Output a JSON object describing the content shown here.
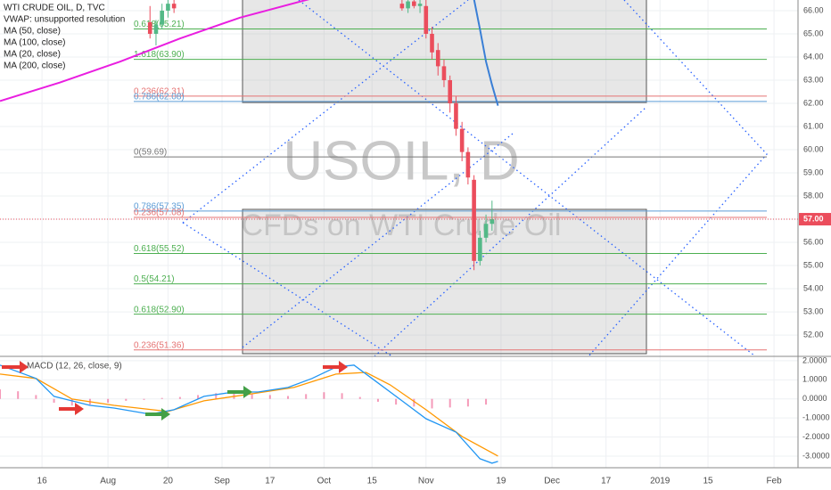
{
  "chart_data": [
    {
      "type": "candlestick",
      "title": "WTI CRUDE OIL, D, TVC",
      "watermark": "USOIL, D",
      "subtitle": "CFDs on WTI Crude Oil",
      "xlim": [
        0,
        133
      ],
      "xticks": [
        {
          "value": 7,
          "label": "16"
        },
        {
          "value": 18,
          "label": "Aug"
        },
        {
          "value": 28,
          "label": "20"
        },
        {
          "value": 37,
          "label": "Sep"
        },
        {
          "value": 45,
          "label": "17"
        },
        {
          "value": 54,
          "label": "Oct"
        },
        {
          "value": 62,
          "label": "15"
        },
        {
          "value": 71,
          "label": "Nov"
        },
        {
          "value": 83.5,
          "label": "19"
        },
        {
          "value": 92,
          "label": "Dec"
        },
        {
          "value": 101,
          "label": "17"
        },
        {
          "value": 110,
          "label": "2019"
        },
        {
          "value": 118,
          "label": "15"
        },
        {
          "value": 129,
          "label": "Feb"
        }
      ],
      "ylim": [
        51.08,
        66.46
      ],
      "yticks": [
        {
          "value": 52,
          "label": "52.00"
        },
        {
          "value": 53,
          "label": "53.00"
        },
        {
          "value": 54,
          "label": "54.00"
        },
        {
          "value": 55,
          "label": "55.00"
        },
        {
          "value": 56,
          "label": "56.00"
        },
        {
          "value": 57,
          "label": "57.00"
        },
        {
          "value": 58,
          "label": "58.00"
        },
        {
          "value": 59,
          "label": "59.00"
        },
        {
          "value": 60,
          "label": "60.00"
        },
        {
          "value": 61,
          "label": "61.00"
        },
        {
          "value": 62,
          "label": "62.00"
        },
        {
          "value": 63,
          "label": "63.00"
        },
        {
          "value": 64,
          "label": "64.00"
        },
        {
          "value": 65,
          "label": "65.00"
        },
        {
          "value": 66,
          "label": "66.00"
        }
      ],
      "grid": true,
      "up_color": "#53b987",
      "down_color": "#eb4d5c",
      "x": [
        25,
        26,
        27,
        28,
        29,
        67,
        68,
        69,
        70,
        71,
        72,
        73,
        74,
        75,
        76,
        77,
        78,
        79,
        80,
        81,
        82
      ],
      "open": [
        65.5,
        65.0,
        65.4,
        66.0,
        66.3,
        66.3,
        66.1,
        66.4,
        66.2,
        66.2,
        65.0,
        64.3,
        63.6,
        63.0,
        62.0,
        60.9,
        59.9,
        58.7,
        55.2,
        56.2,
        56.8
      ],
      "high": [
        66.2,
        65.6,
        66.3,
        66.6,
        66.6,
        66.6,
        66.5,
        66.7,
        66.5,
        66.5,
        65.3,
        64.6,
        63.9,
        63.2,
        62.3,
        61.2,
        60.1,
        58.9,
        56.5,
        57.2,
        57.8
      ],
      "low": [
        64.8,
        64.5,
        65.2,
        65.7,
        65.9,
        66.0,
        65.9,
        66.1,
        65.9,
        64.8,
        63.9,
        63.2,
        62.7,
        61.6,
        60.6,
        59.5,
        58.5,
        54.8,
        55.0,
        56.0,
        56.5
      ],
      "close": [
        65.0,
        65.4,
        66.0,
        66.3,
        66.1,
        66.1,
        66.4,
        66.2,
        66.3,
        65.0,
        64.2,
        63.6,
        63.0,
        62.0,
        60.9,
        59.9,
        58.8,
        55.2,
        56.2,
        56.8,
        57.0
      ],
      "series": [
        {
          "name": "VWAP: unsupported resolution"
        },
        {
          "name": "MA (50, close)",
          "color": "#3a7fd6",
          "x": [
            79,
            80,
            81,
            82,
            83
          ],
          "values": [
            66.5,
            65.2,
            63.8,
            62.8,
            61.9
          ]
        },
        {
          "name": "MA (100, close)"
        },
        {
          "name": "MA (20, close)"
        },
        {
          "name": "MA (200, close)",
          "color": "#e91ee0",
          "x": [
            0,
            10,
            20,
            30,
            40,
            53
          ],
          "values": [
            62.1,
            62.9,
            63.8,
            64.8,
            65.7,
            66.6
          ]
        }
      ],
      "fib_levels": [
        {
          "value": 65.21,
          "label": "0.618(65.21)",
          "color": "#4caf50"
        },
        {
          "value": 63.9,
          "label": "1.618(63.90)",
          "color": "#4caf50"
        },
        {
          "value": 62.31,
          "label": "0.236(62.31)",
          "color": "#e57373"
        },
        {
          "value": 62.08,
          "label": "0.786(62.08)",
          "color": "#5b9cd6"
        },
        {
          "value": 59.69,
          "label": "0(59.69)",
          "color": "#787878"
        },
        {
          "value": 57.35,
          "label": "0.786(57.35)",
          "color": "#5b9cd6"
        },
        {
          "value": 57.08,
          "label": "0.236(57.08)",
          "color": "#e57373"
        },
        {
          "value": 55.52,
          "label": "0.618(55.52)",
          "color": "#4caf50"
        },
        {
          "value": 54.21,
          "label": "0.5(54.21)",
          "color": "#4caf50"
        },
        {
          "value": 52.9,
          "label": "0.618(52.90)",
          "color": "#4caf50"
        },
        {
          "value": 51.36,
          "label": "0.236(51.36)",
          "color": "#e57373"
        }
      ],
      "last_price": {
        "value": 57,
        "label": "57.00",
        "color": "#eb4d5c"
      }
    },
    {
      "type": "macd",
      "title": "MACD (12, 26, close, 9)",
      "ylim": [
        -3.61,
        2.23
      ],
      "yticks": [
        {
          "value": 2,
          "label": "2.0000"
        },
        {
          "value": 1,
          "label": "1.0000"
        },
        {
          "value": 0,
          "label": "0.0000"
        },
        {
          "value": -1,
          "label": "-1.0000"
        },
        {
          "value": -2,
          "label": "-2.0000"
        },
        {
          "value": -3,
          "label": "-3.0000"
        }
      ],
      "macd": {
        "color": "#2196f3",
        "x": [
          0,
          6,
          9,
          15,
          19,
          25,
          29,
          34,
          39,
          43,
          48,
          52,
          56,
          59,
          62,
          67,
          71,
          76,
          80,
          82,
          83
        ],
        "values": [
          1.77,
          1.07,
          0.13,
          -0.34,
          -0.48,
          -0.8,
          -0.57,
          0.13,
          0.36,
          0.36,
          0.6,
          1.07,
          1.67,
          1.77,
          1.07,
          -0.1,
          -1.04,
          -1.74,
          -3.14,
          -3.37,
          -3.28
        ]
      },
      "signal": {
        "color": "#ff9800",
        "x": [
          0,
          6,
          12,
          19,
          28,
          34,
          42,
          49,
          56,
          61,
          65,
          71,
          77,
          83
        ],
        "values": [
          1.3,
          1.07,
          -0.01,
          -0.34,
          -0.66,
          -0.1,
          0.27,
          0.6,
          1.3,
          1.39,
          0.74,
          -0.57,
          -1.97,
          -3.0
        ]
      },
      "histogram": {
        "color": "#e91e63",
        "x": [
          0,
          3,
          6,
          9,
          12,
          15,
          18,
          21,
          24,
          27,
          30,
          33,
          36,
          39,
          42,
          45,
          48,
          51,
          54,
          57,
          60,
          63,
          66,
          69,
          72,
          75,
          78,
          81
        ],
        "values": [
          0.5,
          0.4,
          0.2,
          -0.2,
          -0.35,
          -0.3,
          -0.2,
          -0.1,
          -0.05,
          0.05,
          0.1,
          0.2,
          0.3,
          0.35,
          0.3,
          0.2,
          0.15,
          0.25,
          0.35,
          0.3,
          0.1,
          -0.15,
          -0.3,
          -0.4,
          -0.5,
          -0.45,
          -0.4,
          -0.3
        ]
      }
    }
  ]
}
